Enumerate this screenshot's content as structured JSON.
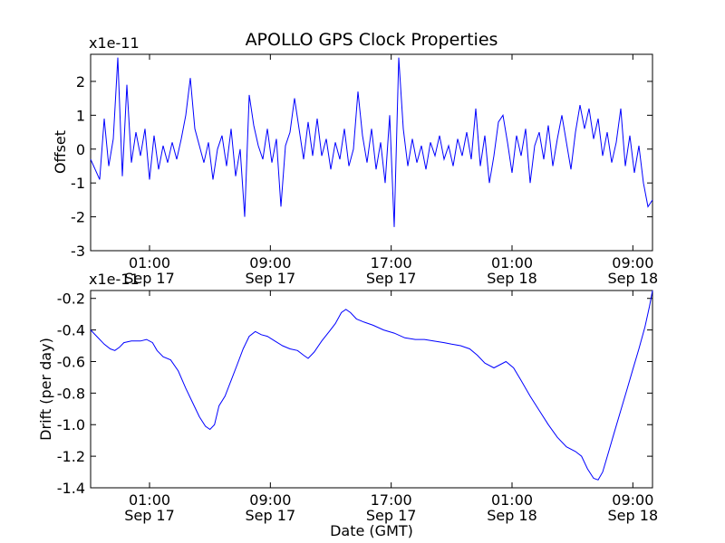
{
  "chart_data": [
    {
      "type": "line",
      "title": "APOLLO GPS Clock Properties",
      "ylabel": "Offset",
      "xlabel": "",
      "yscale_label": "x1e-11",
      "ylim": [
        -3,
        2.8
      ],
      "yticks": [
        -3,
        -2,
        -1,
        0,
        1,
        2
      ],
      "ytick_labels": [
        "-3",
        "-2",
        "-1",
        "0",
        "1",
        "2"
      ],
      "xlim": [
        -3.9,
        33.3
      ],
      "xticks": [
        {
          "x": 0,
          "line1": "01:00",
          "line2": "Sep 17"
        },
        {
          "x": 8,
          "line1": "09:00",
          "line2": "Sep 17"
        },
        {
          "x": 16,
          "line1": "17:00",
          "line2": "Sep 17"
        },
        {
          "x": 24,
          "line1": "01:00",
          "line2": "Sep 18"
        },
        {
          "x": 32,
          "line1": "09:00",
          "line2": "Sep 18"
        }
      ],
      "grid": false,
      "series": [
        {
          "color": "#0000ff",
          "points": [
            [
              -3.9,
              -0.3
            ],
            [
              -3.6,
              -0.6
            ],
            [
              -3.3,
              -0.9
            ],
            [
              -3.0,
              0.9
            ],
            [
              -2.7,
              -0.5
            ],
            [
              -2.4,
              0.3
            ],
            [
              -2.1,
              2.7
            ],
            [
              -1.8,
              -0.8
            ],
            [
              -1.5,
              1.9
            ],
            [
              -1.2,
              -0.4
            ],
            [
              -0.9,
              0.5
            ],
            [
              -0.6,
              -0.2
            ],
            [
              -0.3,
              0.6
            ],
            [
              0.0,
              -0.9
            ],
            [
              0.3,
              0.4
            ],
            [
              0.6,
              -0.6
            ],
            [
              0.9,
              0.1
            ],
            [
              1.2,
              -0.4
            ],
            [
              1.5,
              0.2
            ],
            [
              1.8,
              -0.3
            ],
            [
              2.1,
              0.3
            ],
            [
              2.4,
              1.0
            ],
            [
              2.7,
              2.1
            ],
            [
              3.0,
              0.6
            ],
            [
              3.3,
              0.1
            ],
            [
              3.6,
              -0.4
            ],
            [
              3.9,
              0.2
            ],
            [
              4.2,
              -0.9
            ],
            [
              4.5,
              0.0
            ],
            [
              4.8,
              0.4
            ],
            [
              5.1,
              -0.5
            ],
            [
              5.4,
              0.6
            ],
            [
              5.7,
              -0.8
            ],
            [
              6.0,
              0.0
            ],
            [
              6.3,
              -2.0
            ],
            [
              6.6,
              1.6
            ],
            [
              6.9,
              0.7
            ],
            [
              7.2,
              0.1
            ],
            [
              7.5,
              -0.3
            ],
            [
              7.8,
              0.6
            ],
            [
              8.1,
              -0.4
            ],
            [
              8.4,
              0.3
            ],
            [
              8.7,
              -1.7
            ],
            [
              9.0,
              0.1
            ],
            [
              9.3,
              0.5
            ],
            [
              9.6,
              1.5
            ],
            [
              9.9,
              0.6
            ],
            [
              10.2,
              -0.3
            ],
            [
              10.5,
              0.8
            ],
            [
              10.8,
              -0.2
            ],
            [
              11.1,
              0.9
            ],
            [
              11.4,
              -0.2
            ],
            [
              11.7,
              0.3
            ],
            [
              12.0,
              -0.6
            ],
            [
              12.3,
              0.2
            ],
            [
              12.6,
              -0.3
            ],
            [
              12.9,
              0.6
            ],
            [
              13.2,
              -0.5
            ],
            [
              13.5,
              0.0
            ],
            [
              13.8,
              1.7
            ],
            [
              14.1,
              0.4
            ],
            [
              14.4,
              -0.4
            ],
            [
              14.7,
              0.6
            ],
            [
              15.0,
              -0.6
            ],
            [
              15.3,
              0.2
            ],
            [
              15.6,
              -1.0
            ],
            [
              15.9,
              1.0
            ],
            [
              16.2,
              -2.3
            ],
            [
              16.5,
              2.7
            ],
            [
              16.8,
              0.6
            ],
            [
              17.1,
              -0.5
            ],
            [
              17.4,
              0.3
            ],
            [
              17.7,
              -0.4
            ],
            [
              18.0,
              0.1
            ],
            [
              18.3,
              -0.6
            ],
            [
              18.6,
              0.2
            ],
            [
              18.9,
              -0.2
            ],
            [
              19.2,
              0.4
            ],
            [
              19.5,
              -0.3
            ],
            [
              19.8,
              0.1
            ],
            [
              20.1,
              -0.5
            ],
            [
              20.4,
              0.3
            ],
            [
              20.7,
              -0.2
            ],
            [
              21.0,
              0.5
            ],
            [
              21.3,
              -0.3
            ],
            [
              21.6,
              1.2
            ],
            [
              21.9,
              -0.5
            ],
            [
              22.2,
              0.4
            ],
            [
              22.5,
              -1.0
            ],
            [
              22.8,
              -0.2
            ],
            [
              23.1,
              0.8
            ],
            [
              23.4,
              1.0
            ],
            [
              23.7,
              0.2
            ],
            [
              24.0,
              -0.7
            ],
            [
              24.3,
              0.4
            ],
            [
              24.6,
              -0.2
            ],
            [
              24.9,
              0.6
            ],
            [
              25.2,
              -1.0
            ],
            [
              25.5,
              0.1
            ],
            [
              25.8,
              0.5
            ],
            [
              26.1,
              -0.3
            ],
            [
              26.4,
              0.7
            ],
            [
              26.7,
              -0.5
            ],
            [
              27.0,
              0.3
            ],
            [
              27.3,
              1.0
            ],
            [
              27.6,
              0.2
            ],
            [
              27.9,
              -0.6
            ],
            [
              28.2,
              0.5
            ],
            [
              28.5,
              1.3
            ],
            [
              28.8,
              0.6
            ],
            [
              29.1,
              1.2
            ],
            [
              29.4,
              0.3
            ],
            [
              29.7,
              0.9
            ],
            [
              30.0,
              -0.2
            ],
            [
              30.3,
              0.5
            ],
            [
              30.6,
              -0.4
            ],
            [
              30.9,
              0.2
            ],
            [
              31.2,
              1.2
            ],
            [
              31.5,
              -0.5
            ],
            [
              31.8,
              0.4
            ],
            [
              32.1,
              -0.7
            ],
            [
              32.4,
              0.1
            ],
            [
              32.7,
              -1.0
            ],
            [
              33.0,
              -1.7
            ],
            [
              33.3,
              -1.5
            ]
          ]
        }
      ]
    },
    {
      "type": "line",
      "title": "",
      "ylabel": "Drift (per day)",
      "xlabel": "Date (GMT)",
      "yscale_label": "x1e-11",
      "ylim": [
        -1.4,
        -0.15
      ],
      "yticks": [
        -1.4,
        -1.2,
        -1.0,
        -0.8,
        -0.6,
        -0.4,
        -0.2
      ],
      "ytick_labels": [
        "-1.4",
        "-1.2",
        "-1.0",
        "-0.8",
        "-0.6",
        "-0.4",
        "-0.2"
      ],
      "xlim": [
        -3.9,
        33.3
      ],
      "xticks": [
        {
          "x": 0,
          "line1": "01:00",
          "line2": "Sep 17"
        },
        {
          "x": 8,
          "line1": "09:00",
          "line2": "Sep 17"
        },
        {
          "x": 16,
          "line1": "17:00",
          "line2": "Sep 17"
        },
        {
          "x": 24,
          "line1": "01:00",
          "line2": "Sep 18"
        },
        {
          "x": 32,
          "line1": "09:00",
          "line2": "Sep 18"
        }
      ],
      "grid": false,
      "series": [
        {
          "color": "#0000ff",
          "points": [
            [
              -3.9,
              -0.4
            ],
            [
              -3.5,
              -0.44
            ],
            [
              -3.0,
              -0.49
            ],
            [
              -2.6,
              -0.52
            ],
            [
              -2.3,
              -0.53
            ],
            [
              -2.0,
              -0.51
            ],
            [
              -1.7,
              -0.48
            ],
            [
              -1.2,
              -0.47
            ],
            [
              -0.6,
              -0.47
            ],
            [
              -0.2,
              -0.46
            ],
            [
              0.2,
              -0.48
            ],
            [
              0.5,
              -0.53
            ],
            [
              0.9,
              -0.57
            ],
            [
              1.4,
              -0.59
            ],
            [
              1.9,
              -0.66
            ],
            [
              2.4,
              -0.77
            ],
            [
              2.8,
              -0.85
            ],
            [
              3.3,
              -0.95
            ],
            [
              3.7,
              -1.01
            ],
            [
              4.0,
              -1.03
            ],
            [
              4.3,
              -1.0
            ],
            [
              4.6,
              -0.88
            ],
            [
              5.0,
              -0.82
            ],
            [
              5.4,
              -0.72
            ],
            [
              5.8,
              -0.62
            ],
            [
              6.2,
              -0.52
            ],
            [
              6.6,
              -0.44
            ],
            [
              7.0,
              -0.41
            ],
            [
              7.4,
              -0.43
            ],
            [
              7.8,
              -0.44
            ],
            [
              8.3,
              -0.47
            ],
            [
              8.8,
              -0.5
            ],
            [
              9.3,
              -0.52
            ],
            [
              9.8,
              -0.53
            ],
            [
              10.2,
              -0.56
            ],
            [
              10.5,
              -0.58
            ],
            [
              10.9,
              -0.54
            ],
            [
              11.4,
              -0.47
            ],
            [
              11.9,
              -0.41
            ],
            [
              12.3,
              -0.36
            ],
            [
              12.7,
              -0.29
            ],
            [
              13.0,
              -0.27
            ],
            [
              13.3,
              -0.29
            ],
            [
              13.7,
              -0.33
            ],
            [
              14.2,
              -0.35
            ],
            [
              14.8,
              -0.37
            ],
            [
              15.5,
              -0.4
            ],
            [
              16.2,
              -0.42
            ],
            [
              16.9,
              -0.45
            ],
            [
              17.6,
              -0.46
            ],
            [
              18.2,
              -0.46
            ],
            [
              18.8,
              -0.47
            ],
            [
              19.5,
              -0.48
            ],
            [
              20.0,
              -0.49
            ],
            [
              20.6,
              -0.5
            ],
            [
              21.2,
              -0.52
            ],
            [
              21.7,
              -0.56
            ],
            [
              22.2,
              -0.61
            ],
            [
              22.8,
              -0.64
            ],
            [
              23.2,
              -0.62
            ],
            [
              23.6,
              -0.6
            ],
            [
              24.1,
              -0.64
            ],
            [
              24.6,
              -0.72
            ],
            [
              25.2,
              -0.82
            ],
            [
              25.8,
              -0.91
            ],
            [
              26.4,
              -1.0
            ],
            [
              27.0,
              -1.08
            ],
            [
              27.6,
              -1.14
            ],
            [
              28.2,
              -1.17
            ],
            [
              28.6,
              -1.2
            ],
            [
              29.0,
              -1.28
            ],
            [
              29.4,
              -1.34
            ],
            [
              29.7,
              -1.35
            ],
            [
              30.0,
              -1.3
            ],
            [
              30.4,
              -1.17
            ],
            [
              30.8,
              -1.04
            ],
            [
              31.2,
              -0.91
            ],
            [
              31.6,
              -0.78
            ],
            [
              32.0,
              -0.65
            ],
            [
              32.4,
              -0.52
            ],
            [
              32.8,
              -0.38
            ],
            [
              33.1,
              -0.25
            ],
            [
              33.3,
              -0.15
            ]
          ]
        }
      ]
    }
  ]
}
